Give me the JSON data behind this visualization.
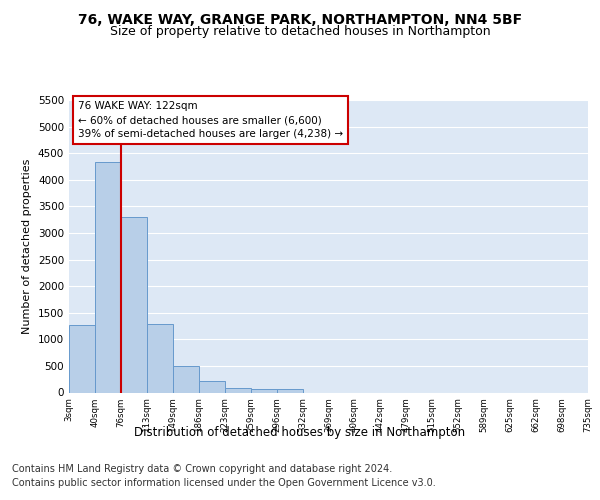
{
  "title1": "76, WAKE WAY, GRANGE PARK, NORTHAMPTON, NN4 5BF",
  "title2": "Size of property relative to detached houses in Northampton",
  "xlabel": "Distribution of detached houses by size in Northampton",
  "ylabel": "Number of detached properties",
  "footer1": "Contains HM Land Registry data © Crown copyright and database right 2024.",
  "footer2": "Contains public sector information licensed under the Open Government Licence v3.0.",
  "annotation_line1": "76 WAKE WAY: 122sqm",
  "annotation_line2": "← 60% of detached houses are smaller (6,600)",
  "annotation_line3": "39% of semi-detached houses are larger (4,238) →",
  "bar_values": [
    1270,
    4330,
    3300,
    1280,
    490,
    210,
    90,
    75,
    60,
    0,
    0,
    0,
    0,
    0,
    0,
    0,
    0,
    0,
    0,
    0
  ],
  "bar_labels": [
    "3sqm",
    "40sqm",
    "76sqm",
    "113sqm",
    "149sqm",
    "186sqm",
    "223sqm",
    "259sqm",
    "296sqm",
    "332sqm",
    "369sqm",
    "406sqm",
    "442sqm",
    "479sqm",
    "515sqm",
    "552sqm",
    "589sqm",
    "625sqm",
    "662sqm",
    "698sqm",
    "735sqm"
  ],
  "bar_color": "#b8cfe8",
  "bar_edge_color": "#6699cc",
  "vline_color": "#cc0000",
  "annotation_box_color": "#cc0000",
  "ylim": [
    0,
    5500
  ],
  "yticks": [
    0,
    500,
    1000,
    1500,
    2000,
    2500,
    3000,
    3500,
    4000,
    4500,
    5000,
    5500
  ],
  "bg_color": "#dde8f5",
  "fig_bg_color": "#ffffff",
  "grid_color": "#ffffff"
}
